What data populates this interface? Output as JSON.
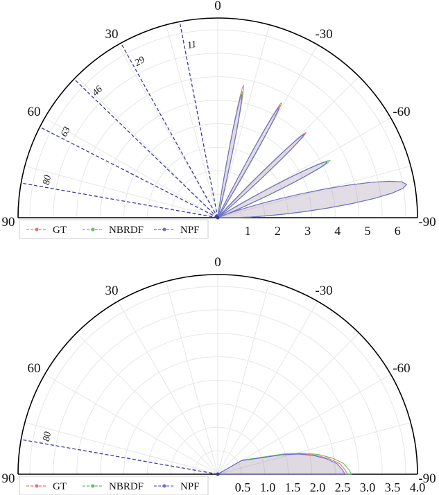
{
  "chart_data": [
    {
      "type": "polar-half",
      "angle_ticks": [
        "0",
        "30",
        "-30",
        "60",
        "-60",
        "90",
        "-90"
      ],
      "radial_ticks": [
        "1",
        "2",
        "3",
        "4",
        "5",
        "6"
      ],
      "rmax": 6.5,
      "incident_angles": [
        11,
        29,
        46,
        63,
        80
      ],
      "legend": [
        {
          "label": "GT",
          "color": "#f07070"
        },
        {
          "label": "NBRDF",
          "color": "#60c060"
        },
        {
          "label": "NPF",
          "color": "#6a6ad8"
        }
      ],
      "lobes": [
        {
          "peak_angle": -11,
          "peak_value": {
            "GT": 4.5,
            "NBRDF": 4.3,
            "NPF": 4.2
          },
          "width": 3
        },
        {
          "peak_angle": -29,
          "peak_value": {
            "GT": 4.4,
            "NBRDF": 4.3,
            "NPF": 4.2
          },
          "width": 3
        },
        {
          "peak_angle": -46,
          "peak_value": {
            "GT": 4.1,
            "NBRDF": 4.0,
            "NPF": 4.0
          },
          "width": 3.5
        },
        {
          "peak_angle": -63,
          "peak_value": {
            "GT": 4.1,
            "NBRDF": 4.2,
            "NPF": 4.1
          },
          "width": 5
        },
        {
          "peak_angle": -80,
          "peak_value": {
            "GT": 6.4,
            "NBRDF": 6.4,
            "NPF": 6.4
          },
          "width": 10
        }
      ]
    },
    {
      "type": "polar-half",
      "angle_ticks": [
        "0",
        "30",
        "-30",
        "60",
        "-60",
        "90",
        "-90"
      ],
      "radial_ticks": [
        "0.5",
        "1.0",
        "1.5",
        "2.0",
        "2.5",
        "3.0",
        "3.5",
        "4.0"
      ],
      "rmax": 4.0,
      "incident_angles": [
        80
      ],
      "legend": [
        {
          "label": "GT",
          "color": "#f07070"
        },
        {
          "label": "NBRDF",
          "color": "#60c060"
        },
        {
          "label": "NPF",
          "color": "#6a6ad8"
        }
      ],
      "lobe": [
        [
          -60,
          0.55
        ],
        [
          -66,
          0.75
        ],
        [
          -70,
          1.0
        ],
        [
          -73,
          1.35
        ],
        [
          -76,
          1.7
        ],
        [
          -79,
          2.0
        ],
        [
          -82,
          2.25
        ],
        [
          -85,
          2.45
        ],
        [
          -88,
          2.55
        ],
        [
          -90,
          2.6
        ]
      ]
    }
  ]
}
